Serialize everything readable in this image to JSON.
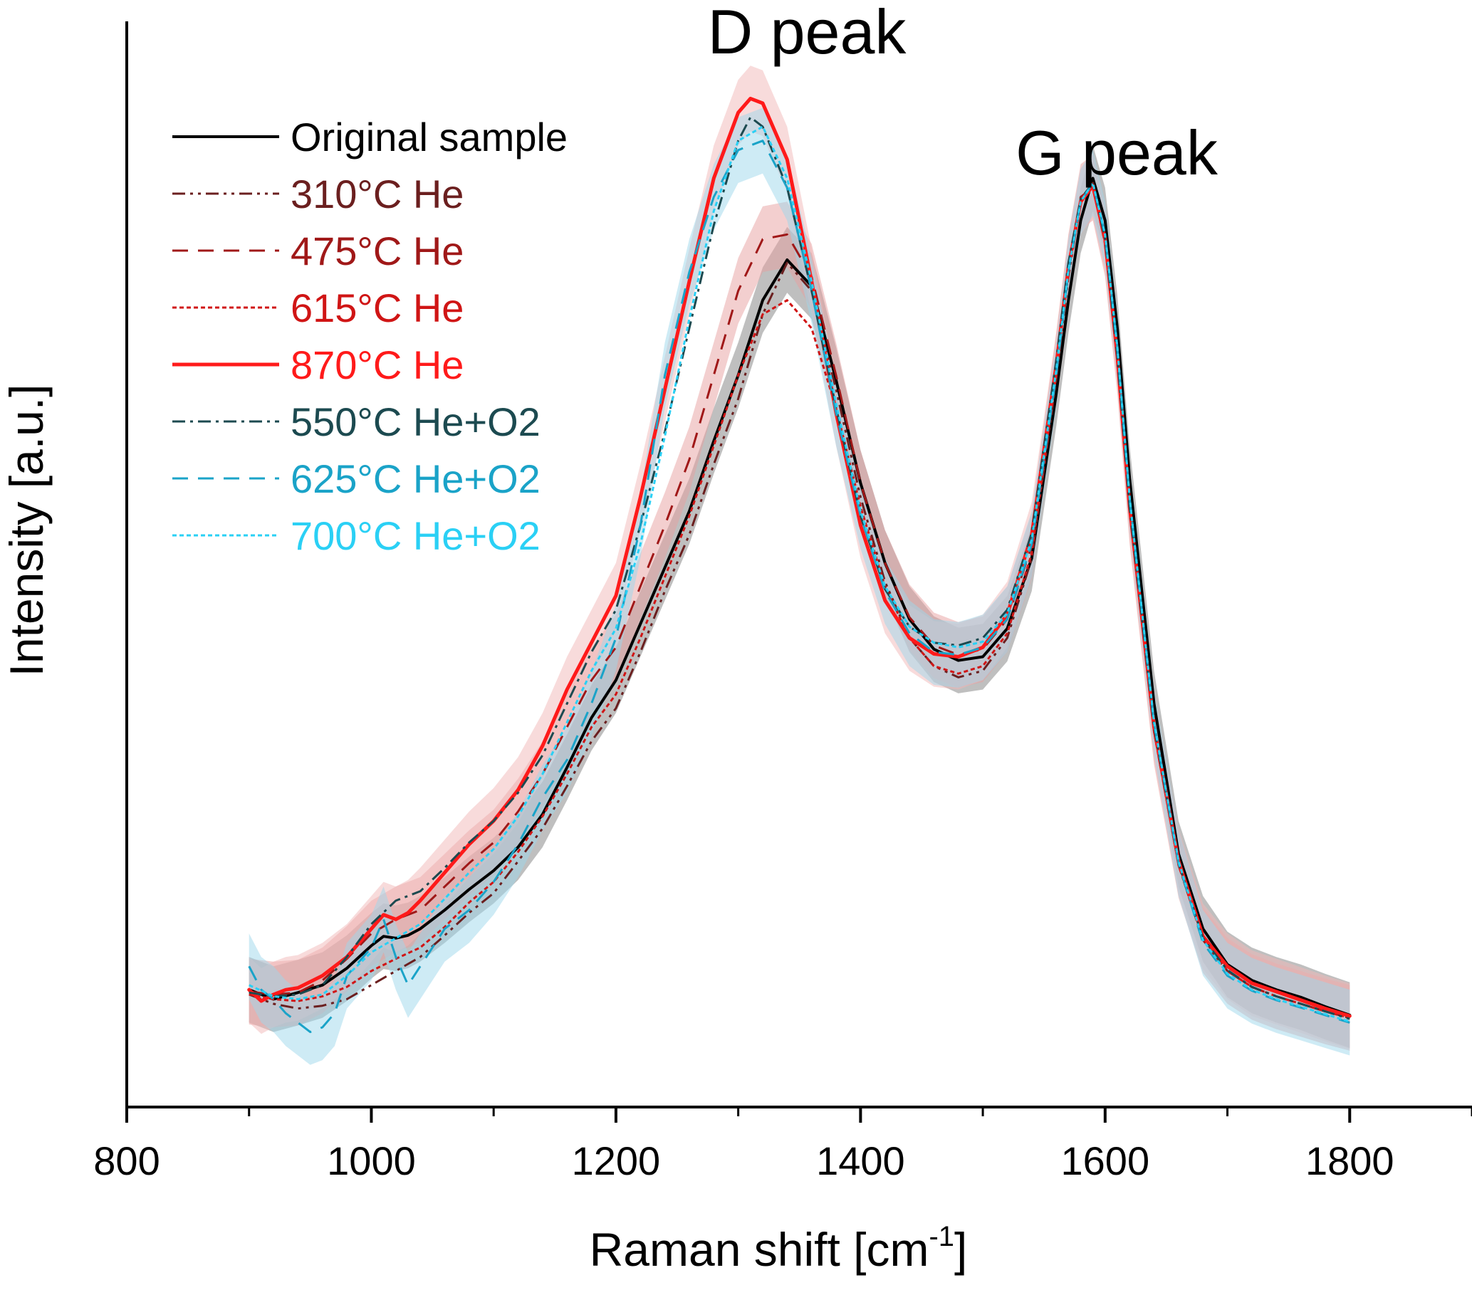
{
  "chart_data": {
    "type": "line",
    "title": "",
    "xlabel": "Raman shift [cm",
    "xlabel_sup": "-1",
    "xlabel_end": "]",
    "ylabel": "Intensity [a.u.]",
    "xlim": [
      800,
      1900
    ],
    "ylim": [
      0,
      1.18
    ],
    "x_ticks": [
      800,
      1000,
      1200,
      1400,
      1600,
      1800
    ],
    "x_minor_ticks": [
      900,
      1100,
      1300,
      1500,
      1700,
      1900
    ],
    "grid": false,
    "legend_position": "top-left",
    "annotations": [
      {
        "text": "D peak",
        "x": 1340,
        "y": 1.15
      },
      {
        "text": "G peak",
        "x": 1587,
        "y": 1.0
      }
    ],
    "series": [
      {
        "name": "Original sample",
        "color": "#000000",
        "dash": "solid",
        "width": 4,
        "band_color": "#808080",
        "x": [
          900,
          920,
          940,
          960,
          980,
          1000,
          1010,
          1020,
          1030,
          1040,
          1060,
          1080,
          1100,
          1120,
          1140,
          1160,
          1180,
          1200,
          1220,
          1240,
          1260,
          1280,
          1300,
          1320,
          1340,
          1360,
          1380,
          1400,
          1420,
          1440,
          1460,
          1480,
          1500,
          1520,
          1540,
          1560,
          1570,
          1580,
          1590,
          1600,
          1610,
          1620,
          1640,
          1660,
          1680,
          1700,
          1720,
          1740,
          1760,
          1780,
          1800
        ],
        "y": [
          0.125,
          0.115,
          0.122,
          0.13,
          0.148,
          0.172,
          0.182,
          0.18,
          0.183,
          0.19,
          0.21,
          0.232,
          0.252,
          0.277,
          0.312,
          0.362,
          0.415,
          0.455,
          0.515,
          0.575,
          0.635,
          0.71,
          0.78,
          0.86,
          0.903,
          0.875,
          0.775,
          0.665,
          0.58,
          0.52,
          0.488,
          0.476,
          0.48,
          0.51,
          0.585,
          0.76,
          0.86,
          0.945,
          0.99,
          0.945,
          0.83,
          0.67,
          0.43,
          0.27,
          0.19,
          0.152,
          0.135,
          0.125,
          0.117,
          0.107,
          0.098
        ]
      },
      {
        "name": "310°C He",
        "color": "#6b1f1f",
        "dash": "18,7,4,7,4,7",
        "width": 3,
        "band_color": null,
        "x": [
          900,
          920,
          940,
          960,
          980,
          1000,
          1020,
          1040,
          1060,
          1080,
          1100,
          1120,
          1140,
          1160,
          1180,
          1200,
          1220,
          1240,
          1260,
          1280,
          1300,
          1320,
          1340,
          1360,
          1380,
          1400,
          1420,
          1440,
          1460,
          1480,
          1500,
          1520,
          1540,
          1560,
          1570,
          1580,
          1590,
          1600,
          1610,
          1620,
          1640,
          1660,
          1680,
          1700,
          1720,
          1740,
          1760,
          1780,
          1800
        ],
        "y": [
          0.12,
          0.11,
          0.105,
          0.108,
          0.115,
          0.13,
          0.145,
          0.16,
          0.183,
          0.207,
          0.228,
          0.262,
          0.297,
          0.342,
          0.39,
          0.425,
          0.485,
          0.55,
          0.61,
          0.685,
          0.755,
          0.845,
          0.9,
          0.87,
          0.765,
          0.65,
          0.56,
          0.5,
          0.47,
          0.458,
          0.465,
          0.5,
          0.585,
          0.775,
          0.885,
          0.965,
          0.985,
          0.925,
          0.8,
          0.64,
          0.405,
          0.26,
          0.18,
          0.145,
          0.128,
          0.118,
          0.11,
          0.102,
          0.095
        ]
      },
      {
        "name": "475°C He",
        "color": "#a01818",
        "dash": "22,14",
        "width": 3,
        "band_color": "#e8a0a0",
        "x": [
          900,
          920,
          940,
          960,
          980,
          1000,
          1020,
          1040,
          1060,
          1080,
          1100,
          1120,
          1140,
          1160,
          1180,
          1200,
          1220,
          1240,
          1260,
          1280,
          1300,
          1320,
          1340,
          1360,
          1380,
          1400,
          1420,
          1440,
          1460,
          1480,
          1500,
          1520,
          1540,
          1560,
          1570,
          1580,
          1590,
          1600,
          1610,
          1620,
          1640,
          1660,
          1680,
          1700,
          1720,
          1740,
          1760,
          1780,
          1800
        ],
        "y": [
          0.123,
          0.12,
          0.122,
          0.135,
          0.158,
          0.185,
          0.2,
          0.21,
          0.235,
          0.26,
          0.282,
          0.315,
          0.355,
          0.405,
          0.455,
          0.49,
          0.555,
          0.62,
          0.69,
          0.78,
          0.87,
          0.925,
          0.93,
          0.885,
          0.78,
          0.665,
          0.58,
          0.522,
          0.492,
          0.482,
          0.488,
          0.52,
          0.598,
          0.79,
          0.895,
          0.97,
          0.98,
          0.92,
          0.795,
          0.635,
          0.4,
          0.258,
          0.178,
          0.145,
          0.128,
          0.118,
          0.11,
          0.102,
          0.095
        ]
      },
      {
        "name": "615°C He",
        "color": "#d01515",
        "dash": "6,4",
        "width": 3,
        "band_color": null,
        "x": [
          900,
          920,
          940,
          960,
          980,
          1000,
          1020,
          1040,
          1060,
          1080,
          1100,
          1120,
          1140,
          1160,
          1180,
          1200,
          1220,
          1240,
          1260,
          1280,
          1300,
          1320,
          1340,
          1360,
          1380,
          1400,
          1420,
          1440,
          1460,
          1480,
          1500,
          1520,
          1540,
          1560,
          1570,
          1580,
          1590,
          1600,
          1610,
          1620,
          1640,
          1660,
          1680,
          1700,
          1720,
          1740,
          1760,
          1780,
          1800
        ],
        "y": [
          0.12,
          0.115,
          0.113,
          0.118,
          0.128,
          0.145,
          0.158,
          0.17,
          0.192,
          0.218,
          0.24,
          0.272,
          0.31,
          0.355,
          0.405,
          0.44,
          0.5,
          0.565,
          0.63,
          0.705,
          0.78,
          0.845,
          0.86,
          0.83,
          0.745,
          0.64,
          0.555,
          0.5,
          0.47,
          0.462,
          0.47,
          0.505,
          0.59,
          0.78,
          0.89,
          0.968,
          0.982,
          0.92,
          0.795,
          0.635,
          0.4,
          0.258,
          0.178,
          0.145,
          0.128,
          0.118,
          0.11,
          0.102,
          0.095
        ]
      },
      {
        "name": "870°C He",
        "color": "#ff1a1a",
        "dash": "solid",
        "width": 5,
        "band_color": "#f2b8b8",
        "x": [
          900,
          910,
          920,
          930,
          940,
          960,
          980,
          1000,
          1010,
          1020,
          1030,
          1040,
          1060,
          1080,
          1100,
          1120,
          1140,
          1160,
          1180,
          1200,
          1220,
          1240,
          1260,
          1280,
          1300,
          1310,
          1320,
          1340,
          1360,
          1380,
          1400,
          1420,
          1440,
          1460,
          1480,
          1500,
          1520,
          1540,
          1560,
          1570,
          1580,
          1590,
          1600,
          1610,
          1620,
          1640,
          1660,
          1680,
          1700,
          1720,
          1740,
          1760,
          1780,
          1800
        ],
        "y": [
          0.125,
          0.113,
          0.12,
          0.125,
          0.127,
          0.14,
          0.16,
          0.19,
          0.205,
          0.2,
          0.207,
          0.22,
          0.25,
          0.28,
          0.305,
          0.338,
          0.385,
          0.445,
          0.495,
          0.545,
          0.65,
          0.765,
          0.88,
          0.99,
          1.06,
          1.075,
          1.07,
          1.01,
          0.88,
          0.74,
          0.62,
          0.54,
          0.5,
          0.483,
          0.48,
          0.49,
          0.525,
          0.61,
          0.79,
          0.895,
          0.965,
          0.982,
          0.925,
          0.8,
          0.64,
          0.405,
          0.262,
          0.182,
          0.15,
          0.132,
          0.123,
          0.114,
          0.105,
          0.097
        ]
      },
      {
        "name": "550°C He+O2",
        "color": "#1c4a50",
        "dash": "18,7,4,7",
        "width": 3,
        "band_color": null,
        "x": [
          900,
          920,
          940,
          960,
          980,
          1000,
          1020,
          1040,
          1060,
          1080,
          1100,
          1120,
          1140,
          1160,
          1180,
          1200,
          1220,
          1240,
          1260,
          1280,
          1300,
          1310,
          1320,
          1340,
          1360,
          1380,
          1400,
          1420,
          1440,
          1460,
          1480,
          1500,
          1520,
          1540,
          1560,
          1570,
          1580,
          1590,
          1600,
          1610,
          1620,
          1640,
          1660,
          1680,
          1700,
          1720,
          1740,
          1760,
          1780,
          1800
        ],
        "y": [
          0.122,
          0.118,
          0.12,
          0.13,
          0.16,
          0.195,
          0.22,
          0.23,
          0.255,
          0.282,
          0.305,
          0.335,
          0.375,
          0.43,
          0.485,
          0.53,
          0.62,
          0.72,
          0.83,
          0.94,
          1.03,
          1.055,
          1.045,
          0.98,
          0.87,
          0.745,
          0.63,
          0.552,
          0.512,
          0.495,
          0.492,
          0.5,
          0.53,
          0.612,
          0.795,
          0.9,
          0.968,
          0.985,
          0.925,
          0.8,
          0.64,
          0.405,
          0.26,
          0.18,
          0.146,
          0.128,
          0.118,
          0.11,
          0.102,
          0.094
        ]
      },
      {
        "name": "625°C He+O2",
        "color": "#1aa3c8",
        "dash": "22,14",
        "width": 3,
        "band_color": "#9dd8ec",
        "x": [
          900,
          910,
          920,
          930,
          940,
          950,
          960,
          970,
          980,
          1000,
          1010,
          1020,
          1030,
          1040,
          1060,
          1080,
          1100,
          1120,
          1140,
          1160,
          1180,
          1200,
          1220,
          1240,
          1260,
          1280,
          1300,
          1320,
          1340,
          1360,
          1380,
          1400,
          1420,
          1440,
          1460,
          1480,
          1500,
          1520,
          1540,
          1560,
          1570,
          1580,
          1590,
          1600,
          1610,
          1620,
          1640,
          1660,
          1680,
          1700,
          1720,
          1740,
          1760,
          1780,
          1800
        ],
        "y": [
          0.15,
          0.125,
          0.115,
          0.1,
          0.09,
          0.08,
          0.085,
          0.1,
          0.14,
          0.17,
          0.2,
          0.16,
          0.13,
          0.15,
          0.19,
          0.21,
          0.24,
          0.28,
          0.33,
          0.37,
          0.43,
          0.5,
          0.62,
          0.78,
          0.89,
          0.97,
          1.02,
          1.03,
          0.98,
          0.87,
          0.74,
          0.63,
          0.55,
          0.505,
          0.485,
          0.482,
          0.49,
          0.52,
          0.6,
          0.78,
          0.89,
          0.965,
          0.985,
          0.93,
          0.81,
          0.65,
          0.41,
          0.26,
          0.175,
          0.14,
          0.124,
          0.114,
          0.106,
          0.098,
          0.09
        ]
      },
      {
        "name": "700°C He+O2",
        "color": "#2ad0f5",
        "dash": "6,4",
        "width": 3,
        "band_color": null,
        "x": [
          900,
          920,
          940,
          960,
          980,
          1000,
          1020,
          1040,
          1060,
          1080,
          1100,
          1120,
          1140,
          1160,
          1180,
          1200,
          1220,
          1240,
          1260,
          1280,
          1300,
          1320,
          1340,
          1360,
          1380,
          1400,
          1420,
          1440,
          1460,
          1480,
          1500,
          1520,
          1540,
          1560,
          1570,
          1580,
          1590,
          1600,
          1610,
          1620,
          1640,
          1660,
          1680,
          1700,
          1720,
          1740,
          1760,
          1780,
          1800
        ],
        "y": [
          0.13,
          0.118,
          0.115,
          0.12,
          0.14,
          0.165,
          0.18,
          0.195,
          0.222,
          0.25,
          0.275,
          0.31,
          0.355,
          0.41,
          0.465,
          0.51,
          0.6,
          0.715,
          0.84,
          0.955,
          1.03,
          1.045,
          0.99,
          0.88,
          0.75,
          0.635,
          0.555,
          0.512,
          0.495,
          0.49,
          0.496,
          0.526,
          0.605,
          0.785,
          0.892,
          0.965,
          0.985,
          0.93,
          0.81,
          0.65,
          0.41,
          0.262,
          0.178,
          0.142,
          0.125,
          0.115,
          0.107,
          0.099,
          0.091
        ]
      }
    ]
  }
}
